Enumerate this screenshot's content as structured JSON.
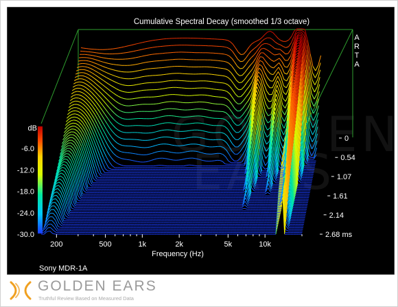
{
  "chart_data": {
    "type": "waterfall-3d",
    "title": "Cumulative Spectral Decay (smoothed 1/3 octave)",
    "subject": "Sony MDR-1A",
    "xlabel": "Frequency (Hz)",
    "x_scale": "log",
    "x_range": [
      150,
      20000
    ],
    "x_ticks": [
      "200",
      "500",
      "1k",
      "2k",
      "5k",
      "10k"
    ],
    "x_tick_values": [
      200,
      500,
      1000,
      2000,
      5000,
      10000
    ],
    "ylabel": "dB",
    "y_range": [
      -30,
      0
    ],
    "y_ticks": [
      "-6.0",
      "-12.0",
      "-18.0",
      "-24.0",
      "-30.0"
    ],
    "y_tick_values": [
      -6,
      -12,
      -18,
      -24,
      -30
    ],
    "z_label": "ms",
    "z_range": [
      0,
      2.68
    ],
    "z_ticks": [
      "0",
      "0.54",
      "1.07",
      "1.61",
      "2.14",
      "2.68 ms"
    ],
    "z_tick_values": [
      0,
      0.54,
      1.07,
      1.61,
      2.14,
      2.68
    ],
    "slice_count": 60,
    "colormap": [
      "#1a3cff",
      "#00c8ff",
      "#00e8a0",
      "#d8ff00",
      "#ffd000",
      "#ff5000",
      "#c00000"
    ],
    "background": "#000000",
    "box_color": "#2fa02f",
    "frame_color": "#808080",
    "side_label": "ARTA",
    "watermark": [
      "GOLDEN",
      "EARS"
    ]
  },
  "brand": {
    "name": "GOLDEN EARS",
    "tagline": "Truthful Review Based on Measured Data",
    "accent": "#f0a020"
  }
}
